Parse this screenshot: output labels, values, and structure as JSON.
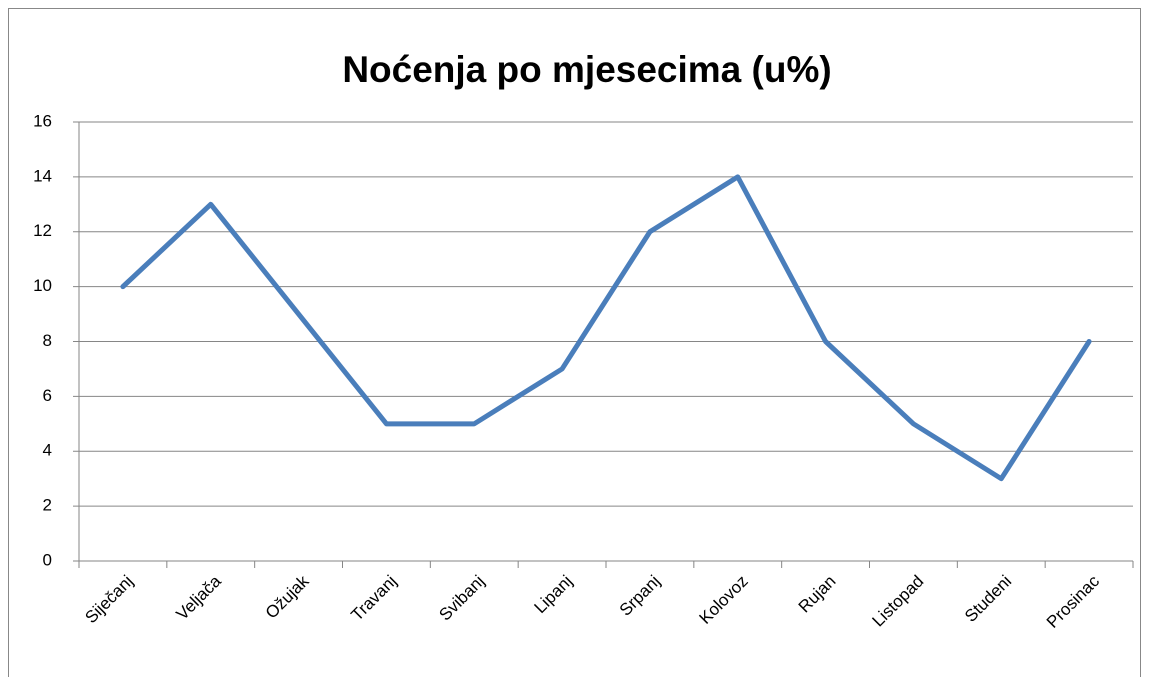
{
  "chart_data": {
    "type": "line",
    "title": "Noćenja po mjesecima (u%)",
    "categories": [
      "Siječanj",
      "Veljača",
      "Ožujak",
      "Travanj",
      "Svibanj",
      "Lipanj",
      "Srpanj",
      "Kolovoz",
      "Rujan",
      "Listopad",
      "Studeni",
      "Prosinac"
    ],
    "values": [
      10,
      13,
      9,
      5,
      5,
      7,
      12,
      14,
      8,
      5,
      3,
      8
    ],
    "color": "#4a7ebb",
    "ylim": [
      0,
      16
    ],
    "yticks": [
      0,
      2,
      4,
      6,
      8,
      10,
      12,
      14,
      16
    ],
    "grid": true
  }
}
